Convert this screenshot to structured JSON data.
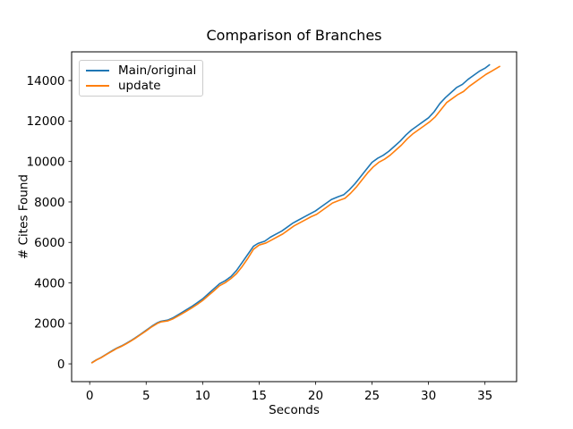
{
  "chart_data": {
    "type": "line",
    "title": "Comparison of Branches",
    "xlabel": "Seconds",
    "ylabel": "# Cites Found",
    "xlim": [
      -1.6,
      37.8
    ],
    "ylim": [
      -880,
      15420
    ],
    "x_ticks": [
      0,
      5,
      10,
      15,
      20,
      25,
      30,
      35
    ],
    "y_ticks": [
      0,
      2000,
      4000,
      6000,
      8000,
      10000,
      12000,
      14000
    ],
    "grid": false,
    "legend_position": "upper left",
    "series": [
      {
        "name": "Main/original",
        "color": "#1f77b4",
        "points": [
          [
            0.2,
            60
          ],
          [
            0.6,
            200
          ],
          [
            1.0,
            310
          ],
          [
            1.5,
            480
          ],
          [
            2.0,
            650
          ],
          [
            2.4,
            780
          ],
          [
            2.8,
            880
          ],
          [
            3.2,
            1000
          ],
          [
            3.6,
            1130
          ],
          [
            4.0,
            1270
          ],
          [
            4.5,
            1460
          ],
          [
            5.0,
            1660
          ],
          [
            5.5,
            1860
          ],
          [
            6.0,
            2030
          ],
          [
            6.3,
            2100
          ],
          [
            6.9,
            2160
          ],
          [
            7.4,
            2280
          ],
          [
            8.0,
            2480
          ],
          [
            8.5,
            2650
          ],
          [
            9.0,
            2820
          ],
          [
            9.5,
            3010
          ],
          [
            10.0,
            3210
          ],
          [
            10.5,
            3460
          ],
          [
            11.0,
            3710
          ],
          [
            11.5,
            3960
          ],
          [
            12.0,
            4110
          ],
          [
            12.5,
            4310
          ],
          [
            13.0,
            4610
          ],
          [
            13.5,
            5010
          ],
          [
            14.0,
            5410
          ],
          [
            14.5,
            5810
          ],
          [
            14.9,
            5950
          ],
          [
            15.5,
            6060
          ],
          [
            16.0,
            6260
          ],
          [
            16.5,
            6410
          ],
          [
            17.0,
            6560
          ],
          [
            17.5,
            6760
          ],
          [
            18.0,
            6960
          ],
          [
            18.5,
            7110
          ],
          [
            19.0,
            7260
          ],
          [
            19.5,
            7410
          ],
          [
            20.0,
            7560
          ],
          [
            20.5,
            7760
          ],
          [
            21.0,
            7960
          ],
          [
            21.4,
            8120
          ],
          [
            22.0,
            8260
          ],
          [
            22.5,
            8360
          ],
          [
            23.0,
            8610
          ],
          [
            23.5,
            8910
          ],
          [
            24.0,
            9260
          ],
          [
            24.5,
            9610
          ],
          [
            25.0,
            9960
          ],
          [
            25.5,
            10160
          ],
          [
            26.0,
            10310
          ],
          [
            26.5,
            10510
          ],
          [
            27.0,
            10760
          ],
          [
            27.5,
            11010
          ],
          [
            28.0,
            11310
          ],
          [
            28.5,
            11560
          ],
          [
            29.0,
            11760
          ],
          [
            29.5,
            11960
          ],
          [
            30.0,
            12160
          ],
          [
            30.5,
            12460
          ],
          [
            31.0,
            12860
          ],
          [
            31.5,
            13160
          ],
          [
            32.0,
            13410
          ],
          [
            32.5,
            13660
          ],
          [
            33.0,
            13810
          ],
          [
            33.5,
            14060
          ],
          [
            34.0,
            14260
          ],
          [
            34.5,
            14460
          ],
          [
            35.0,
            14610
          ],
          [
            35.4,
            14780
          ]
        ]
      },
      {
        "name": "update",
        "color": "#ff7f0e",
        "points": [
          [
            0.2,
            50
          ],
          [
            0.6,
            190
          ],
          [
            1.0,
            300
          ],
          [
            1.5,
            470
          ],
          [
            2.0,
            630
          ],
          [
            2.4,
            760
          ],
          [
            2.8,
            860
          ],
          [
            3.2,
            980
          ],
          [
            3.6,
            1110
          ],
          [
            4.0,
            1250
          ],
          [
            4.5,
            1440
          ],
          [
            5.0,
            1630
          ],
          [
            5.5,
            1830
          ],
          [
            6.0,
            2000
          ],
          [
            6.3,
            2070
          ],
          [
            6.9,
            2120
          ],
          [
            7.4,
            2230
          ],
          [
            8.0,
            2420
          ],
          [
            8.5,
            2580
          ],
          [
            9.0,
            2750
          ],
          [
            9.5,
            2930
          ],
          [
            10.0,
            3130
          ],
          [
            10.5,
            3370
          ],
          [
            11.0,
            3610
          ],
          [
            11.5,
            3860
          ],
          [
            12.0,
            4010
          ],
          [
            12.5,
            4210
          ],
          [
            13.0,
            4460
          ],
          [
            13.5,
            4810
          ],
          [
            14.0,
            5210
          ],
          [
            14.5,
            5660
          ],
          [
            15.0,
            5870
          ],
          [
            15.6,
            5970
          ],
          [
            16.1,
            6120
          ],
          [
            16.6,
            6270
          ],
          [
            17.1,
            6420
          ],
          [
            17.6,
            6620
          ],
          [
            18.1,
            6820
          ],
          [
            18.6,
            6970
          ],
          [
            19.1,
            7120
          ],
          [
            19.6,
            7270
          ],
          [
            20.1,
            7390
          ],
          [
            20.6,
            7590
          ],
          [
            21.1,
            7790
          ],
          [
            21.5,
            7950
          ],
          [
            22.1,
            8080
          ],
          [
            22.6,
            8180
          ],
          [
            23.1,
            8430
          ],
          [
            23.6,
            8730
          ],
          [
            24.1,
            9080
          ],
          [
            24.6,
            9430
          ],
          [
            25.1,
            9730
          ],
          [
            25.6,
            9960
          ],
          [
            26.1,
            10110
          ],
          [
            26.6,
            10310
          ],
          [
            27.1,
            10560
          ],
          [
            27.6,
            10810
          ],
          [
            28.1,
            11110
          ],
          [
            28.6,
            11360
          ],
          [
            29.1,
            11560
          ],
          [
            29.6,
            11760
          ],
          [
            30.1,
            11960
          ],
          [
            30.6,
            12210
          ],
          [
            31.1,
            12560
          ],
          [
            31.6,
            12910
          ],
          [
            32.1,
            13110
          ],
          [
            32.6,
            13310
          ],
          [
            33.1,
            13460
          ],
          [
            33.6,
            13710
          ],
          [
            34.1,
            13910
          ],
          [
            34.6,
            14110
          ],
          [
            35.1,
            14310
          ],
          [
            35.6,
            14470
          ],
          [
            36.0,
            14600
          ],
          [
            36.3,
            14700
          ]
        ]
      }
    ]
  }
}
